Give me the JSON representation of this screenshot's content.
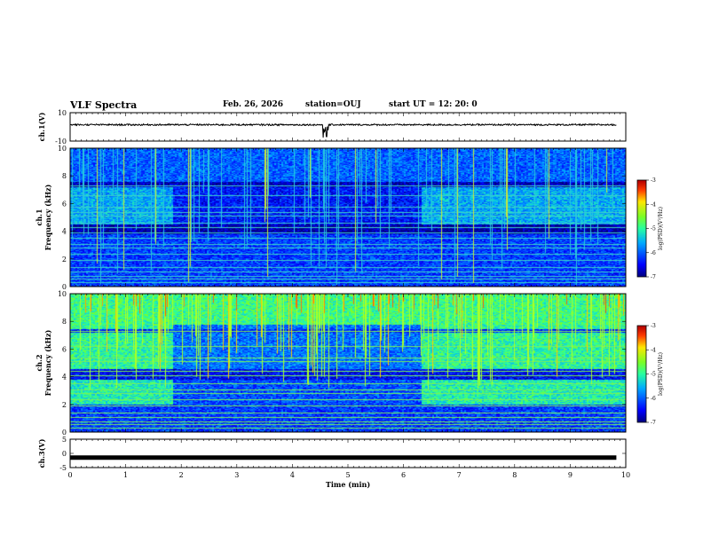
{
  "header": {
    "title": "VLF Spectra",
    "date": "Feb. 26, 2026",
    "station": "station=OUJ",
    "start": "start  UT =   12: 20: 0"
  },
  "chart_data": [
    {
      "type": "line",
      "ylabel": "ch.1(V)",
      "ylim": [
        -10,
        10
      ],
      "yticks": [
        "10",
        "-10"
      ],
      "xlim": [
        0,
        10
      ],
      "baseline": 1.5
    },
    {
      "type": "heatmap",
      "ylabel": "ch.1\nFrequency (kHz)",
      "ylim": [
        0,
        10
      ],
      "yticks": [
        "0",
        "2",
        "4",
        "6",
        "8",
        "10"
      ],
      "colorbar": {
        "label": "log(PSD)(V²/Hz)",
        "range": [
          -7,
          -3
        ],
        "ticks": [
          "-3",
          "-4",
          "-5",
          "-6",
          "-7"
        ]
      }
    },
    {
      "type": "heatmap",
      "ylabel": "ch.2\nFrequency (kHz)",
      "ylim": [
        0,
        10
      ],
      "yticks": [
        "0",
        "2",
        "4",
        "6",
        "8",
        "10"
      ],
      "colorbar": {
        "label": "log(PSD)(V²/Hz)",
        "range": [
          -7,
          -3
        ],
        "ticks": [
          "-3",
          "-4",
          "-5",
          "-6",
          "-7"
        ]
      }
    },
    {
      "type": "line",
      "ylabel": "ch.3(V)",
      "ylim": [
        -5,
        5
      ],
      "yticks": [
        "5",
        "0",
        "-5"
      ],
      "baseline": -1.5
    }
  ],
  "xaxis": {
    "label": "Time (min)",
    "range": [
      0,
      10
    ],
    "ticks": [
      "0",
      "1",
      "2",
      "3",
      "4",
      "5",
      "6",
      "7",
      "8",
      "9",
      "10"
    ]
  }
}
